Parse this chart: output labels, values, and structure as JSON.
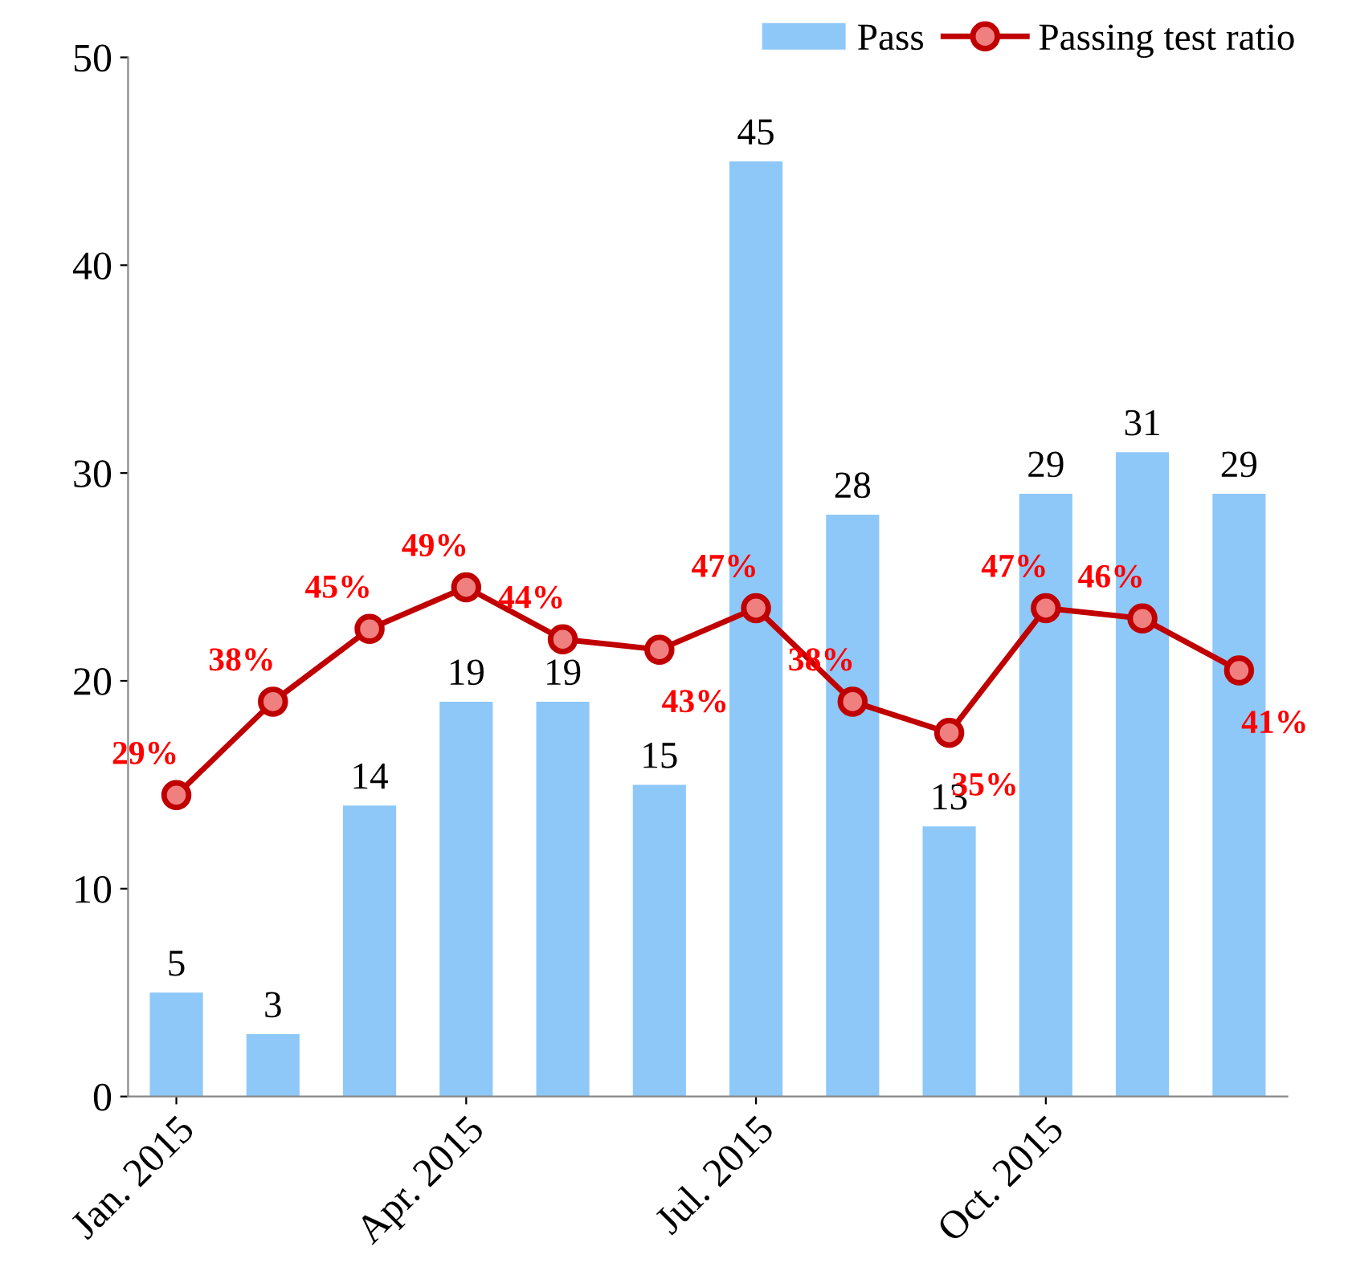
{
  "chart_data": {
    "type": "bar",
    "categories": [
      "Jan. 2015",
      null,
      null,
      "Apr. 2015",
      null,
      null,
      "Jul. 2015",
      null,
      null,
      "Oct. 2015",
      null,
      null
    ],
    "series": [
      {
        "name": "Pass",
        "color": "#8ec8f8",
        "values": [
          5,
          3,
          14,
          19,
          19,
          15,
          45,
          28,
          13,
          29,
          31,
          29
        ]
      },
      {
        "name": "Passing test ratio",
        "type": "line",
        "axis": "y2",
        "color": "#c00000",
        "marker": "circle",
        "values": [
          29,
          38,
          45,
          49,
          44,
          43,
          47,
          38,
          35,
          47,
          46,
          41
        ],
        "value_labels": [
          "29%",
          "38%",
          "45%",
          "49%",
          "44%",
          "43%",
          "47%",
          "38%",
          "35%",
          "47%",
          "46%",
          "41%"
        ]
      }
    ],
    "ylim": [
      0,
      50
    ],
    "yticks": [
      0,
      10,
      20,
      30,
      40,
      50
    ],
    "y2lim": [
      0,
      100
    ],
    "data_labels": true,
    "legend": "top right",
    "grid": false
  }
}
